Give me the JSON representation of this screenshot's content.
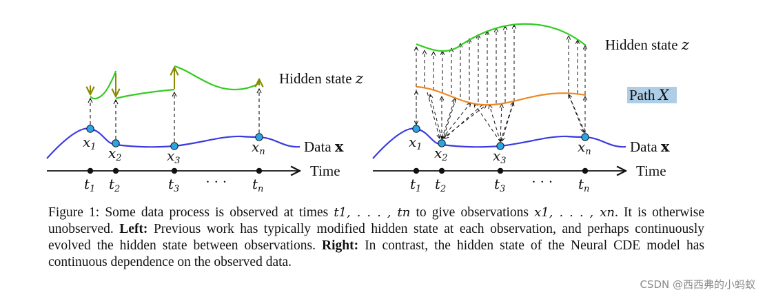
{
  "left_panel": {
    "hidden_state_label": "Hidden state",
    "hidden_state_var": "z",
    "data_label": "Data",
    "data_var": "x",
    "time_label": "Time",
    "ticks": [
      "t1",
      "t2",
      "t3",
      "tn"
    ],
    "ellipsis": "· · ·",
    "observations": [
      "x1",
      "x2",
      "x3",
      "xn"
    ]
  },
  "right_panel": {
    "hidden_state_label": "Hidden state",
    "hidden_state_var": "z",
    "path_label": "Path",
    "path_var": "X",
    "data_label": "Data",
    "data_var": "x",
    "time_label": "Time",
    "ticks": [
      "t1",
      "t2",
      "t3",
      "tn"
    ],
    "ellipsis": "· · ·",
    "observations": [
      "x1",
      "x2",
      "x3",
      "xn"
    ]
  },
  "caption": {
    "p1": "Figure 1: Some data process is observed at times ",
    "times": "t1, . . . , tn",
    "p2": " to give observations ",
    "obs": "x1, . . . , xn",
    "p3": ". It is otherwise unobserved. ",
    "left_bold": "Left:",
    "p4": " Previous work has typically modified hidden state at each observation, and perhaps continuously evolved the hidden state between observations. ",
    "right_bold": "Right:",
    "p5": " In contrast, the hidden state of the Neural CDE model has continuous dependence on the observed data."
  },
  "watermark": "CSDN @西西弗的小蚂蚁",
  "colors": {
    "data_curve": "#3a3ae0",
    "hidden_curve": "#33cc22",
    "jump": "#8a8a00",
    "path_curve": "#ee8822",
    "point_fill": "#2aa6e6",
    "path_label_bg": "#aecde6"
  }
}
